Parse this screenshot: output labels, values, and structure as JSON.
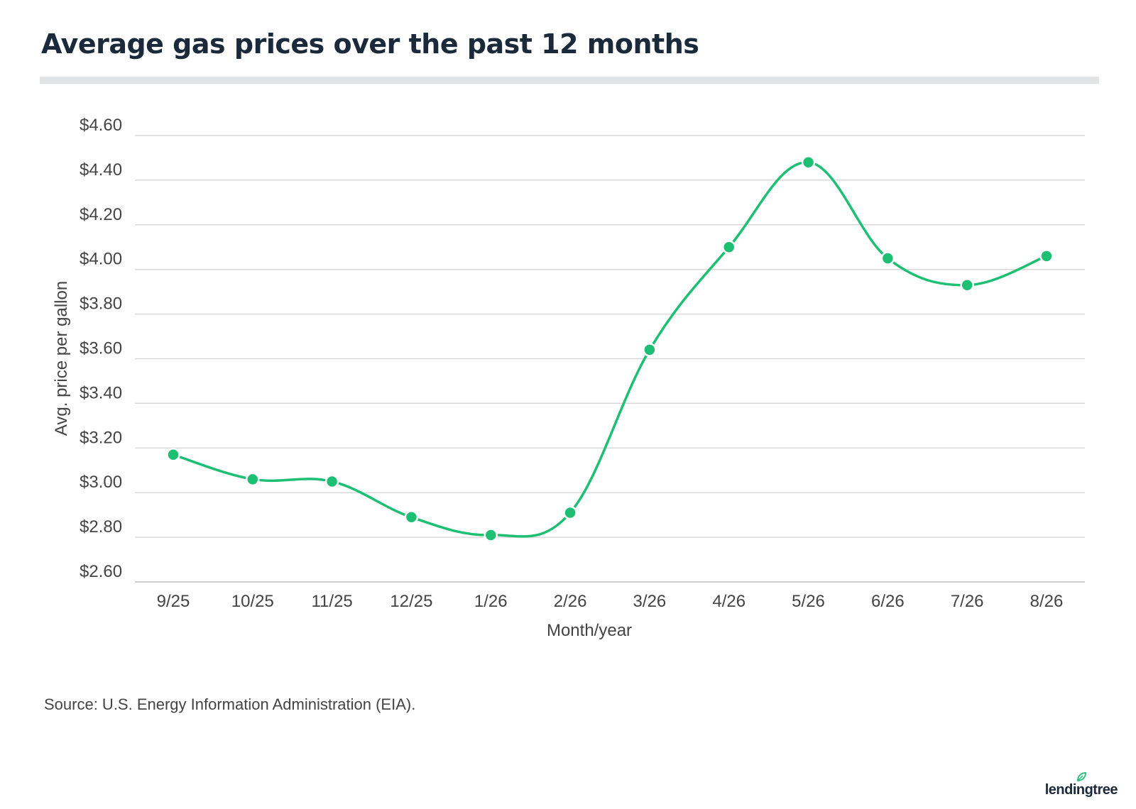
{
  "title": "Average gas prices over the past 12 months",
  "source": "Source: U.S. Energy Information Administration (EIA).",
  "logo": "lendingtree",
  "colors": {
    "line": "#1dbf73",
    "grid": "#d9d9d9",
    "text": "#444444"
  },
  "chart_data": {
    "type": "line",
    "title": "Average gas prices over the past 12 months",
    "xlabel": "Month/year",
    "ylabel": "Avg. price per gallon",
    "categories": [
      "9/25",
      "10/25",
      "11/25",
      "12/25",
      "1/26",
      "2/26",
      "3/26",
      "4/26",
      "5/26",
      "6/26",
      "7/26",
      "8/26"
    ],
    "values": [
      3.17,
      3.06,
      3.05,
      2.89,
      2.81,
      2.91,
      3.64,
      4.1,
      4.48,
      4.05,
      3.93,
      4.06
    ],
    "ylim": [
      2.6,
      4.6
    ],
    "yticks": [
      4.6,
      4.4,
      4.2,
      4.0,
      3.8,
      3.6,
      3.4,
      3.2,
      3.0,
      2.8,
      2.6
    ],
    "ytick_labels": [
      "$4.60",
      "$4.40",
      "$4.20",
      "$4.00",
      "$3.80",
      "$3.60",
      "$3.40",
      "$3.20",
      "$3.00",
      "$2.80",
      "$2.60"
    ],
    "grid": true,
    "legend": "none"
  }
}
